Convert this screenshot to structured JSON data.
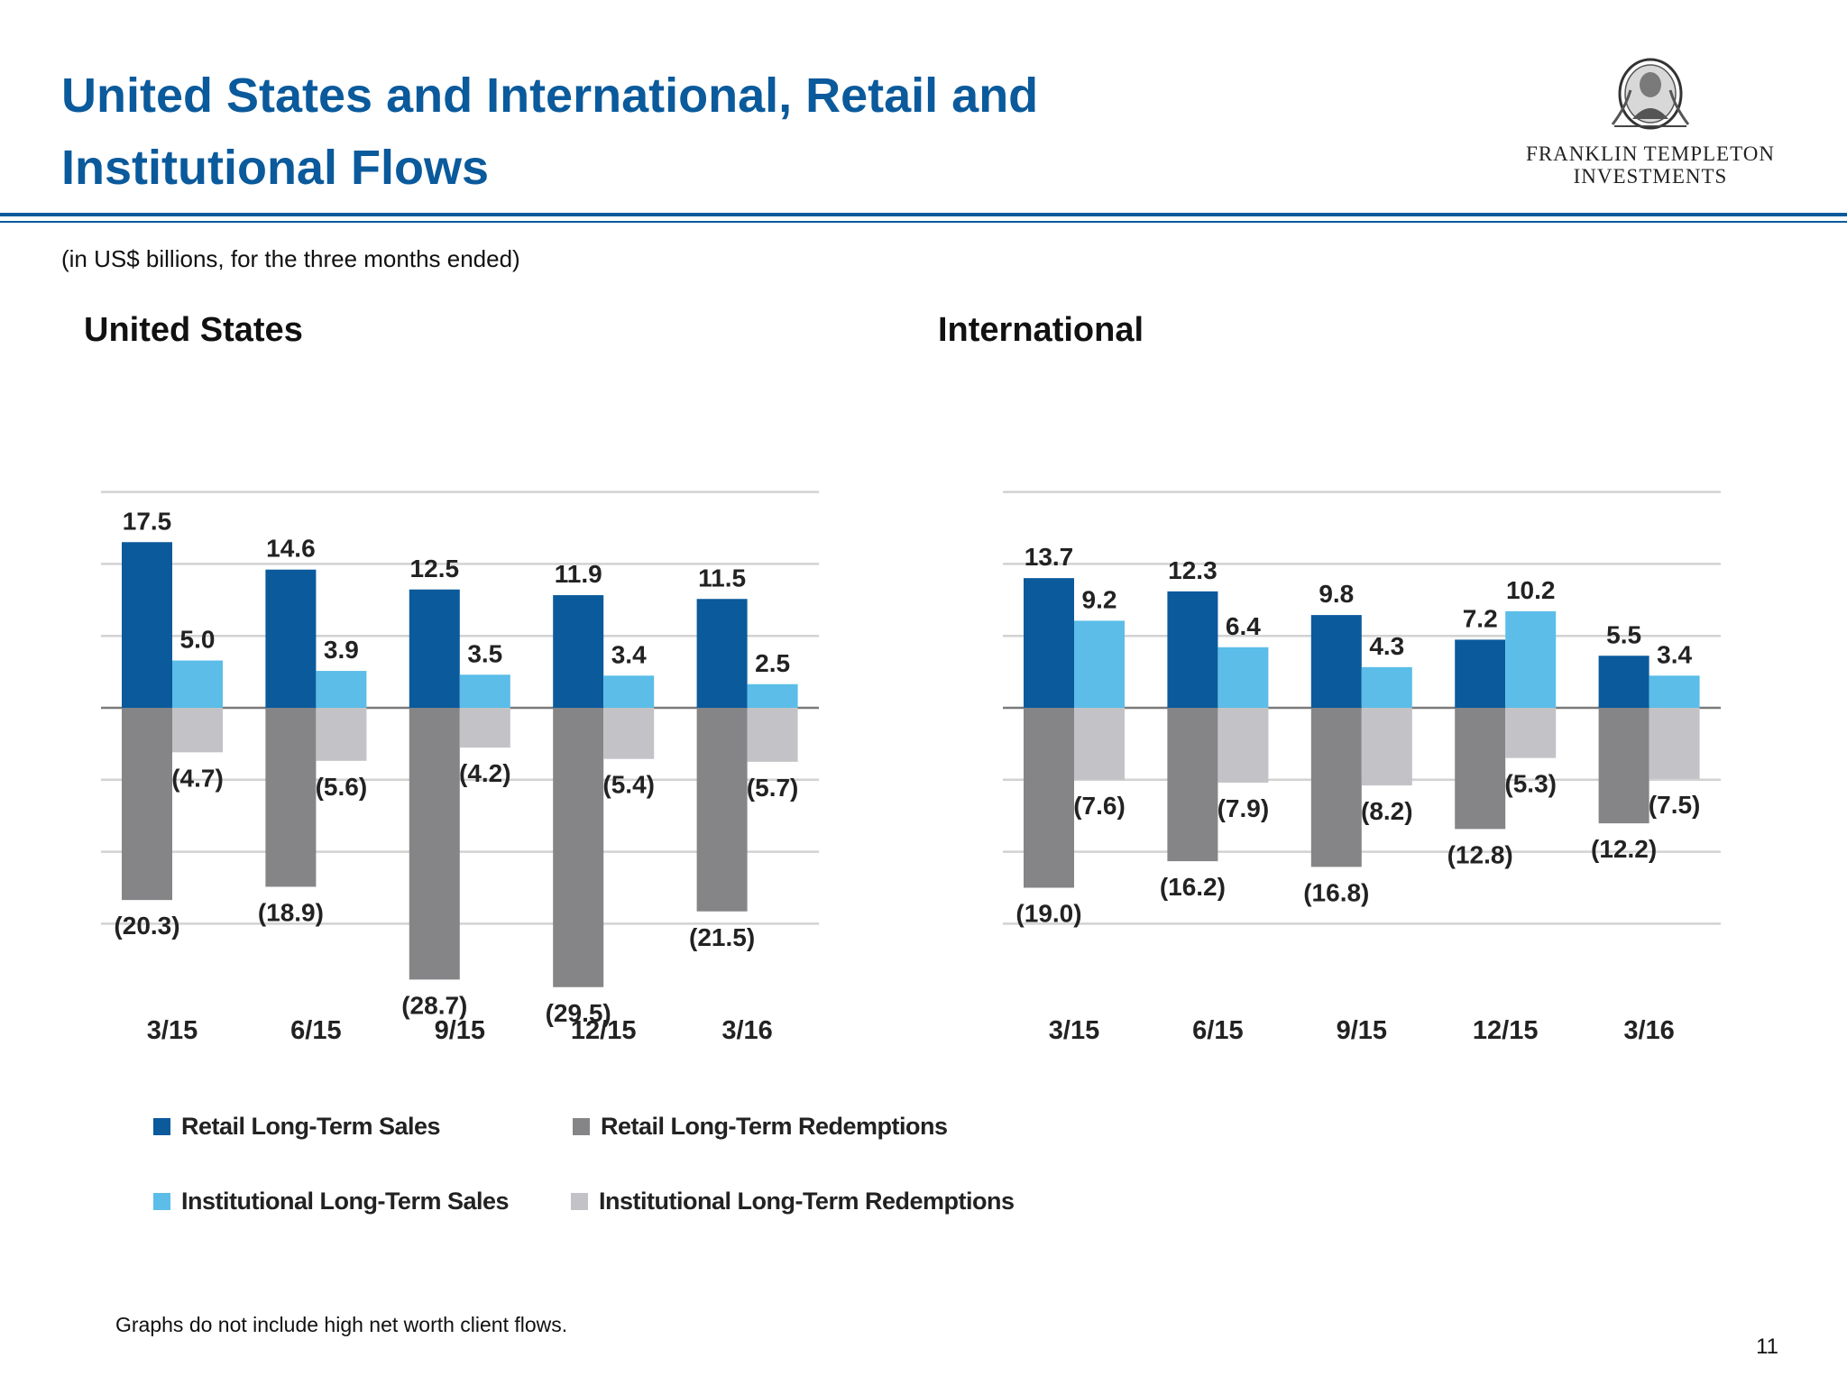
{
  "page": {
    "title_line1": "United States and International, Retail and",
    "title_line2": "Institutional Flows",
    "subtitle": "(in US$ billions, for the three months ended)",
    "footnote": "Graphs do not include high net worth client flows.",
    "page_number": "11"
  },
  "logo": {
    "line1": "FRANKLIN TEMPLETON",
    "line2": "INVESTMENTS",
    "icon": "franklin-seal-icon"
  },
  "colors": {
    "retail_sales": "#0a5a9c",
    "institutional_sales": "#5bbde8",
    "retail_redemptions": "#858588",
    "institutional_redemptions": "#c3c3c7",
    "title": "#0a5a9c"
  },
  "legend": {
    "items": [
      {
        "label": "Retail Long-Term Sales",
        "color": "#0a5a9c"
      },
      {
        "label": "Retail Long-Term Redemptions",
        "color": "#858588"
      },
      {
        "label": "Institutional Long-Term Sales",
        "color": "#5bbde8"
      },
      {
        "label": "Institutional Long-Term Redemptions",
        "color": "#c3c3c7"
      }
    ]
  },
  "chart_data": [
    {
      "type": "bar",
      "title": "United States",
      "categories": [
        "3/15",
        "6/15",
        "9/15",
        "12/15",
        "3/16"
      ],
      "ylim": [
        -30,
        30
      ],
      "grid": true,
      "legend_position": "bottom",
      "series": [
        {
          "name": "Retail Long-Term Sales",
          "values": [
            17.5,
            14.6,
            12.5,
            11.9,
            11.5
          ],
          "labels": [
            "17.5",
            "14.6",
            "12.5",
            "11.9",
            "11.5"
          ]
        },
        {
          "name": "Institutional Long-Term Sales",
          "values": [
            5.0,
            3.9,
            3.5,
            3.4,
            2.5
          ],
          "labels": [
            "5.0",
            "3.9",
            "3.5",
            "3.4",
            "2.5"
          ]
        },
        {
          "name": "Retail Long-Term Redemptions",
          "values": [
            -20.3,
            -18.9,
            -28.7,
            -29.5,
            -21.5
          ],
          "labels": [
            "(20.3)",
            "(18.9)",
            "(28.7)",
            "(29.5)",
            "(21.5)"
          ]
        },
        {
          "name": "Institutional Long-Term Redemptions",
          "values": [
            -4.7,
            -5.6,
            -4.2,
            -5.4,
            -5.7
          ],
          "labels": [
            "(4.7)",
            "(5.6)",
            "(4.2)",
            "(5.4)",
            "(5.7)"
          ]
        }
      ]
    },
    {
      "type": "bar",
      "title": "International",
      "categories": [
        "3/15",
        "6/15",
        "9/15",
        "12/15",
        "3/16"
      ],
      "ylim": [
        -30,
        30
      ],
      "grid": true,
      "legend_position": "bottom",
      "series": [
        {
          "name": "Retail Long-Term Sales",
          "values": [
            13.7,
            12.3,
            9.8,
            7.2,
            5.5
          ],
          "labels": [
            "13.7",
            "12.3",
            "9.8",
            "7.2",
            "5.5"
          ]
        },
        {
          "name": "Institutional Long-Term Sales",
          "values": [
            9.2,
            6.4,
            4.3,
            10.2,
            3.4
          ],
          "labels": [
            "9.2",
            "6.4",
            "4.3",
            "10.2",
            "3.4"
          ]
        },
        {
          "name": "Retail Long-Term Redemptions",
          "values": [
            -19.0,
            -16.2,
            -16.8,
            -12.8,
            -12.2
          ],
          "labels": [
            "(19.0)",
            "(16.2)",
            "(16.8)",
            "(12.8)",
            "(12.2)"
          ]
        },
        {
          "name": "Institutional Long-Term Redemptions",
          "values": [
            -7.6,
            -7.9,
            -8.2,
            -5.3,
            -7.5
          ],
          "labels": [
            "(7.6)",
            "(7.9)",
            "(8.2)",
            "(5.3)",
            "(7.5)"
          ]
        }
      ]
    }
  ]
}
